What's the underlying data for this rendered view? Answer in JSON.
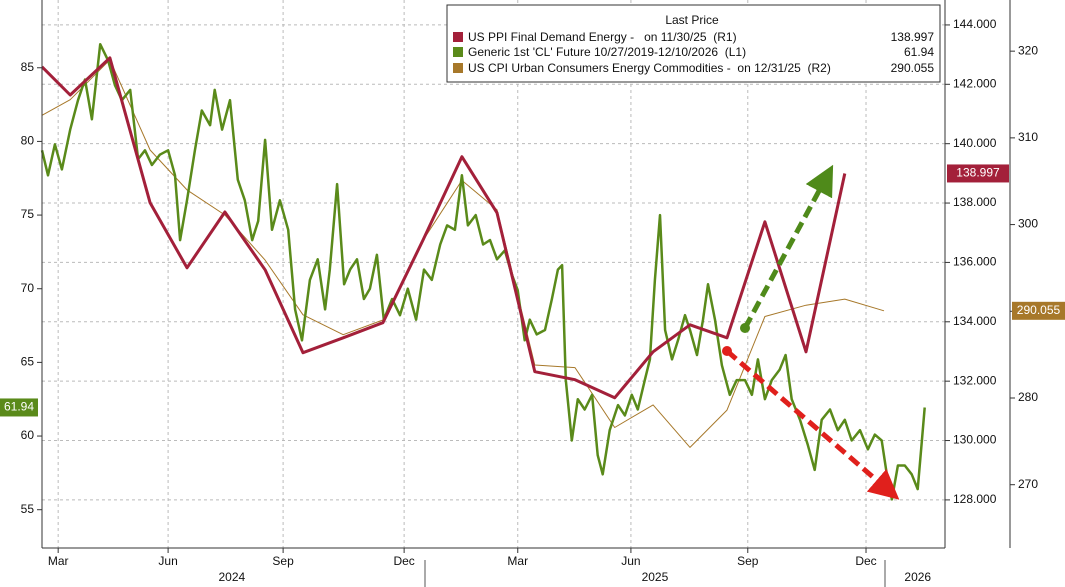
{
  "chart_data": {
    "type": "line",
    "legend_title": "Last Price",
    "xlim": [
      2024.132,
      2026.087
    ],
    "xticks": [
      {
        "value": 2024.167,
        "label": "Mar"
      },
      {
        "value": 2024.405,
        "label": "Jun"
      },
      {
        "value": 2024.654,
        "label": "Sep"
      },
      {
        "value": 2024.916,
        "label": "Dec"
      },
      {
        "value": 2025.162,
        "label": "Mar"
      },
      {
        "value": 2025.407,
        "label": "Jun"
      },
      {
        "value": 2025.66,
        "label": "Sep"
      },
      {
        "value": 2025.916,
        "label": "Dec"
      }
    ],
    "year_ticks": [
      {
        "value": 2024.543,
        "label": "2024"
      },
      {
        "value": 2025.459,
        "label": "2025"
      },
      {
        "value": 2026.028,
        "label": "2026"
      }
    ],
    "ylim": [
      52.4,
      89.6
    ],
    "yticks": [
      55,
      60,
      65,
      70,
      75,
      80,
      85
    ],
    "y2lim": [
      126.38,
      144.84
    ],
    "y2ticks": [
      {
        "value": 128,
        "label": "128.000"
      },
      {
        "value": 130,
        "label": "130.000"
      },
      {
        "value": 132,
        "label": "132.000"
      },
      {
        "value": 134,
        "label": "134.000"
      },
      {
        "value": 136,
        "label": "136.000"
      },
      {
        "value": 138,
        "label": "138.000"
      },
      {
        "value": 140,
        "label": "140.000"
      },
      {
        "value": 142,
        "label": "142.000"
      },
      {
        "value": 144,
        "label": "144.000"
      }
    ],
    "y3lim": [
      262.7,
      325.9
    ],
    "y3ticks": [
      270,
      280,
      290,
      300,
      310,
      320
    ],
    "grid": true,
    "series": [
      {
        "name": "US PPI Final Demand Energy -   on 11/30/25  (R1)",
        "color": "#a3203a",
        "axis": "y2",
        "x": [
          2024.132,
          2024.193,
          2024.279,
          2024.366,
          2024.446,
          2024.528,
          2024.615,
          2024.697,
          2024.784,
          2024.87,
          2024.957,
          2025.041,
          2025.117,
          2025.199,
          2025.286,
          2025.372,
          2025.455,
          2025.535,
          2025.615,
          2025.697,
          2025.786,
          2025.87
        ],
        "values": [
          142.59,
          141.64,
          142.89,
          138.01,
          135.82,
          137.7,
          135.75,
          132.96,
          133.46,
          133.97,
          136.76,
          139.56,
          137.67,
          132.32,
          132.05,
          131.44,
          132.99,
          133.9,
          133.46,
          137.37,
          132.99,
          138.997
        ]
      },
      {
        "name": "Generic 1st 'CL' Future 10/27/2019-12/10/2026  (L1)",
        "color": "#5a8a1a",
        "axis": "y",
        "x": [
          2024.132,
          2024.145,
          2024.16,
          2024.175,
          2024.193,
          2024.21,
          2024.225,
          2024.24,
          2024.258,
          2024.275,
          2024.29,
          2024.305,
          2024.323,
          2024.34,
          2024.355,
          2024.37,
          2024.387,
          2024.405,
          2024.42,
          2024.431,
          2024.446,
          2024.463,
          2024.478,
          2024.496,
          2024.506,
          2024.522,
          2024.539,
          2024.556,
          2024.571,
          2024.587,
          2024.6,
          2024.615,
          2024.63,
          2024.647,
          2024.665,
          2024.68,
          2024.695,
          2024.712,
          2024.729,
          2024.745,
          2024.755,
          2024.771,
          2024.786,
          2024.799,
          2024.814,
          2024.829,
          2024.842,
          2024.857,
          2024.872,
          2024.89,
          2024.907,
          2024.924,
          2024.942,
          2024.959,
          2024.976,
          2024.994,
          2025.009,
          2025.026,
          2025.041,
          2025.054,
          2025.071,
          2025.087,
          2025.102,
          2025.117,
          2025.134,
          2025.149,
          2025.162,
          2025.177,
          2025.188,
          2025.203,
          2025.221,
          2025.236,
          2025.249,
          2025.258,
          2025.266,
          2025.279,
          2025.292,
          2025.307,
          2025.323,
          2025.335,
          2025.346,
          2025.361,
          2025.379,
          2025.394,
          2025.409,
          2025.422,
          2025.437,
          2025.448,
          2025.459,
          2025.47,
          2025.481,
          2025.496,
          2025.509,
          2025.524,
          2025.535,
          2025.55,
          2025.563,
          2025.574,
          2025.589,
          2025.604,
          2025.621,
          2025.636,
          2025.654,
          2025.669,
          2025.682,
          2025.697,
          2025.712,
          2025.729,
          2025.742,
          2025.755,
          2025.773,
          2025.79,
          2025.805,
          2025.82,
          2025.838,
          2025.855,
          2025.87,
          2025.885,
          2025.903,
          2025.92,
          2025.935,
          2025.95,
          2025.963,
          2025.972,
          2025.985,
          2026.0,
          2026.015,
          2026.028,
          2026.037,
          2026.043
        ],
        "values": [
          79.4,
          77.7,
          79.8,
          78.1,
          80.8,
          82.8,
          84.2,
          81.5,
          86.6,
          85.5,
          83.8,
          82.8,
          83.5,
          78.8,
          79.4,
          78.4,
          79.1,
          79.4,
          77.7,
          73.3,
          76.0,
          79.4,
          82.1,
          81.1,
          83.5,
          80.8,
          82.8,
          77.4,
          76.0,
          73.3,
          74.6,
          80.1,
          74.0,
          76.0,
          74.0,
          68.6,
          66.5,
          70.6,
          72.0,
          68.6,
          71.3,
          77.1,
          70.3,
          71.3,
          72.0,
          69.3,
          70.0,
          72.3,
          67.9,
          69.3,
          68.2,
          70.0,
          67.9,
          71.3,
          70.6,
          73.0,
          74.3,
          74.0,
          77.7,
          74.3,
          75.0,
          73.0,
          73.3,
          72.0,
          72.6,
          71.0,
          69.9,
          66.5,
          67.9,
          66.9,
          67.2,
          69.3,
          71.3,
          71.6,
          63.8,
          59.7,
          62.5,
          61.8,
          62.8,
          58.7,
          57.4,
          60.4,
          62.1,
          61.4,
          62.8,
          61.8,
          63.8,
          65.2,
          70.6,
          75.0,
          67.2,
          65.2,
          66.5,
          68.2,
          67.2,
          65.5,
          67.9,
          70.3,
          67.9,
          64.8,
          62.8,
          63.8,
          63.8,
          62.8,
          65.2,
          62.5,
          63.8,
          64.5,
          65.5,
          62.5,
          61.1,
          59.4,
          57.7,
          61.1,
          61.8,
          60.4,
          61.1,
          59.7,
          60.4,
          59.1,
          60.1,
          59.7,
          57.0,
          55.7,
          58.0,
          58.0,
          57.4,
          56.4,
          59.7,
          61.94
        ]
      },
      {
        "name": "US CPI Urban Consumers Energy Commodities -  on 12/31/25  (R2)",
        "color": "#a7782a",
        "axis": "y3",
        "x": [
          2024.132,
          2024.193,
          2024.279,
          2024.366,
          2024.446,
          2024.528,
          2024.615,
          2024.697,
          2024.784,
          2024.87,
          2024.957,
          2025.041,
          2025.117,
          2025.199,
          2025.286,
          2025.372,
          2025.455,
          2025.535,
          2025.615,
          2025.697,
          2025.786,
          2025.87,
          2025.955
        ],
        "values": [
          312.6,
          314.4,
          319.0,
          308.6,
          304.0,
          301.1,
          295.9,
          289.6,
          287.3,
          289.0,
          298.2,
          305.1,
          301.7,
          283.8,
          283.5,
          276.6,
          279.2,
          274.3,
          278.6,
          289.4,
          290.7,
          291.4,
          290.055
        ]
      }
    ]
  }
}
